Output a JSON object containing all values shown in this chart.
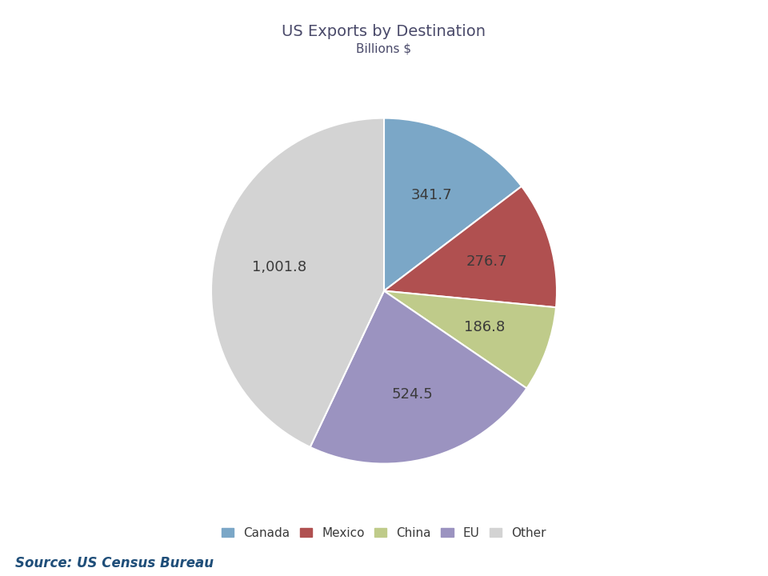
{
  "title": "US Exports by Destination",
  "subtitle": "Billions $",
  "labels": [
    "Canada",
    "Mexico",
    "China",
    "EU",
    "Other"
  ],
  "values": [
    341.7,
    276.7,
    186.8,
    524.5,
    1001.8
  ],
  "colors": [
    "#7BA7C7",
    "#B05050",
    "#BFCB8A",
    "#9B93C0",
    "#D3D3D3"
  ],
  "legend_labels": [
    "Canada",
    "Mexico",
    "China",
    "EU",
    "Other"
  ],
  "source_text": "Source: US Census Bureau",
  "title_color": "#4A4A6A",
  "source_color": "#1F4E79",
  "label_fontsize": 13,
  "title_fontsize": 14,
  "subtitle_fontsize": 11,
  "legend_fontsize": 11
}
